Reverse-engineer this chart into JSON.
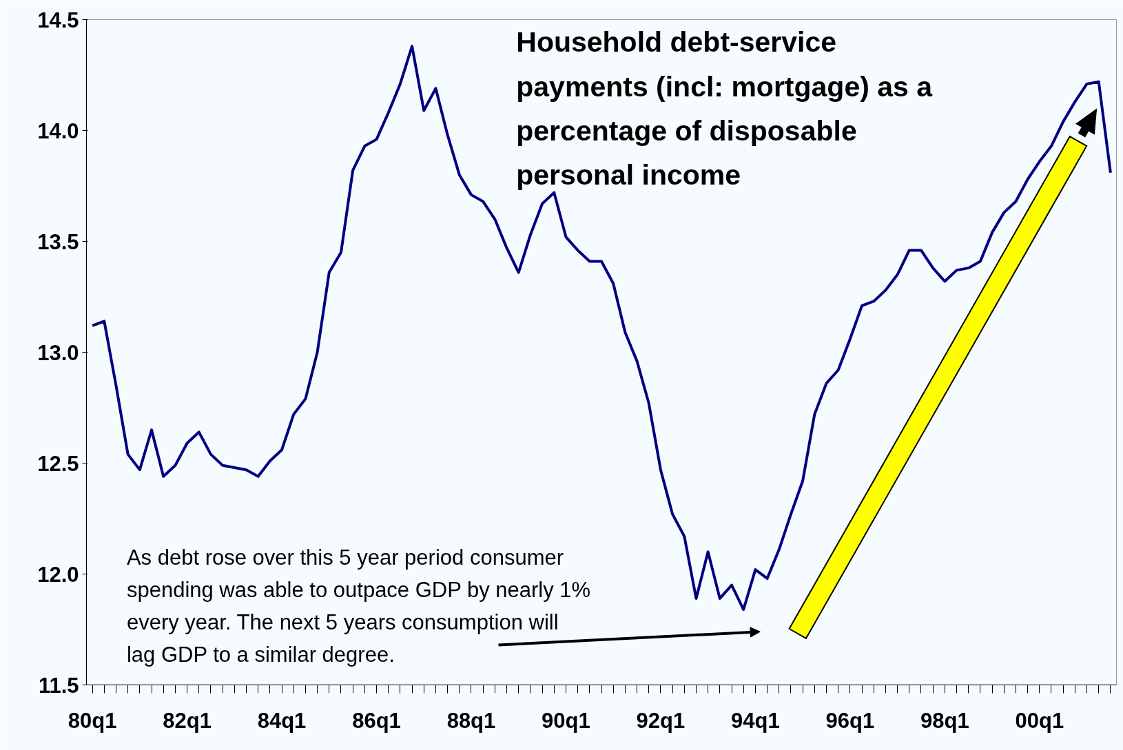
{
  "chart_data": {
    "type": "line",
    "title": "Household debt-service payments (incl: mortgage) as a percentage of disposable personal income",
    "annotations": [
      "As debt rose over this 5 year period consumer spending was able to outpace GDP by nearly 1% every year.  The next 5 years consumption will lag GDP to a similar degree."
    ],
    "categories": [
      "80q1",
      null,
      null,
      null,
      null,
      null,
      null,
      null,
      "82q1",
      null,
      null,
      null,
      null,
      null,
      null,
      null,
      "84q1",
      null,
      null,
      null,
      null,
      null,
      null,
      null,
      "86q1",
      null,
      null,
      null,
      null,
      null,
      null,
      null,
      "88q1",
      null,
      null,
      null,
      null,
      null,
      null,
      null,
      "90q1",
      null,
      null,
      null,
      null,
      null,
      null,
      null,
      "92q1",
      null,
      null,
      null,
      null,
      null,
      null,
      null,
      "94q1",
      null,
      null,
      null,
      null,
      null,
      null,
      null,
      "96q1",
      null,
      null,
      null,
      null,
      null,
      null,
      null,
      "98q1",
      null,
      null,
      null,
      null,
      null,
      null,
      null,
      "00q1",
      null,
      null,
      null,
      null,
      null,
      null
    ],
    "series": [
      {
        "color": "#000080",
        "values": [
          13.12,
          13.14,
          12.85,
          12.54,
          12.47,
          12.65,
          12.44,
          12.49,
          12.59,
          12.64,
          12.54,
          12.49,
          12.48,
          12.47,
          12.44,
          12.51,
          12.56,
          12.72,
          12.79,
          13.0,
          13.36,
          13.45,
          13.82,
          13.93,
          13.96,
          14.08,
          14.21,
          14.38,
          14.09,
          14.19,
          13.98,
          13.8,
          13.71,
          13.68,
          13.6,
          13.47,
          13.36,
          13.53,
          13.67,
          13.72,
          13.52,
          13.46,
          13.41,
          13.41,
          13.31,
          13.09,
          12.96,
          12.77,
          12.47,
          12.27,
          12.17,
          11.89,
          12.1,
          11.89,
          11.95,
          11.84,
          12.02,
          11.98,
          12.11,
          12.27,
          12.42,
          12.72,
          12.86,
          12.92,
          13.06,
          13.21,
          13.23,
          13.28,
          13.35,
          13.46,
          13.46,
          13.38,
          13.32,
          13.37,
          13.38,
          13.41,
          13.54,
          13.63,
          13.68,
          13.78,
          13.86,
          13.93,
          14.04,
          14.13,
          14.21,
          14.22,
          13.81
        ]
      }
    ],
    "ylim": [
      11.5,
      14.5
    ],
    "yticks": [
      11.5,
      {
        "value": 12,
        "label": "12.0"
      },
      12.5,
      {
        "value": 13,
        "label": "13.0"
      },
      13.5,
      {
        "value": 14,
        "label": "14.0"
      },
      14.5
    ],
    "grid": false,
    "marker": "none",
    "line_style": "solid"
  }
}
